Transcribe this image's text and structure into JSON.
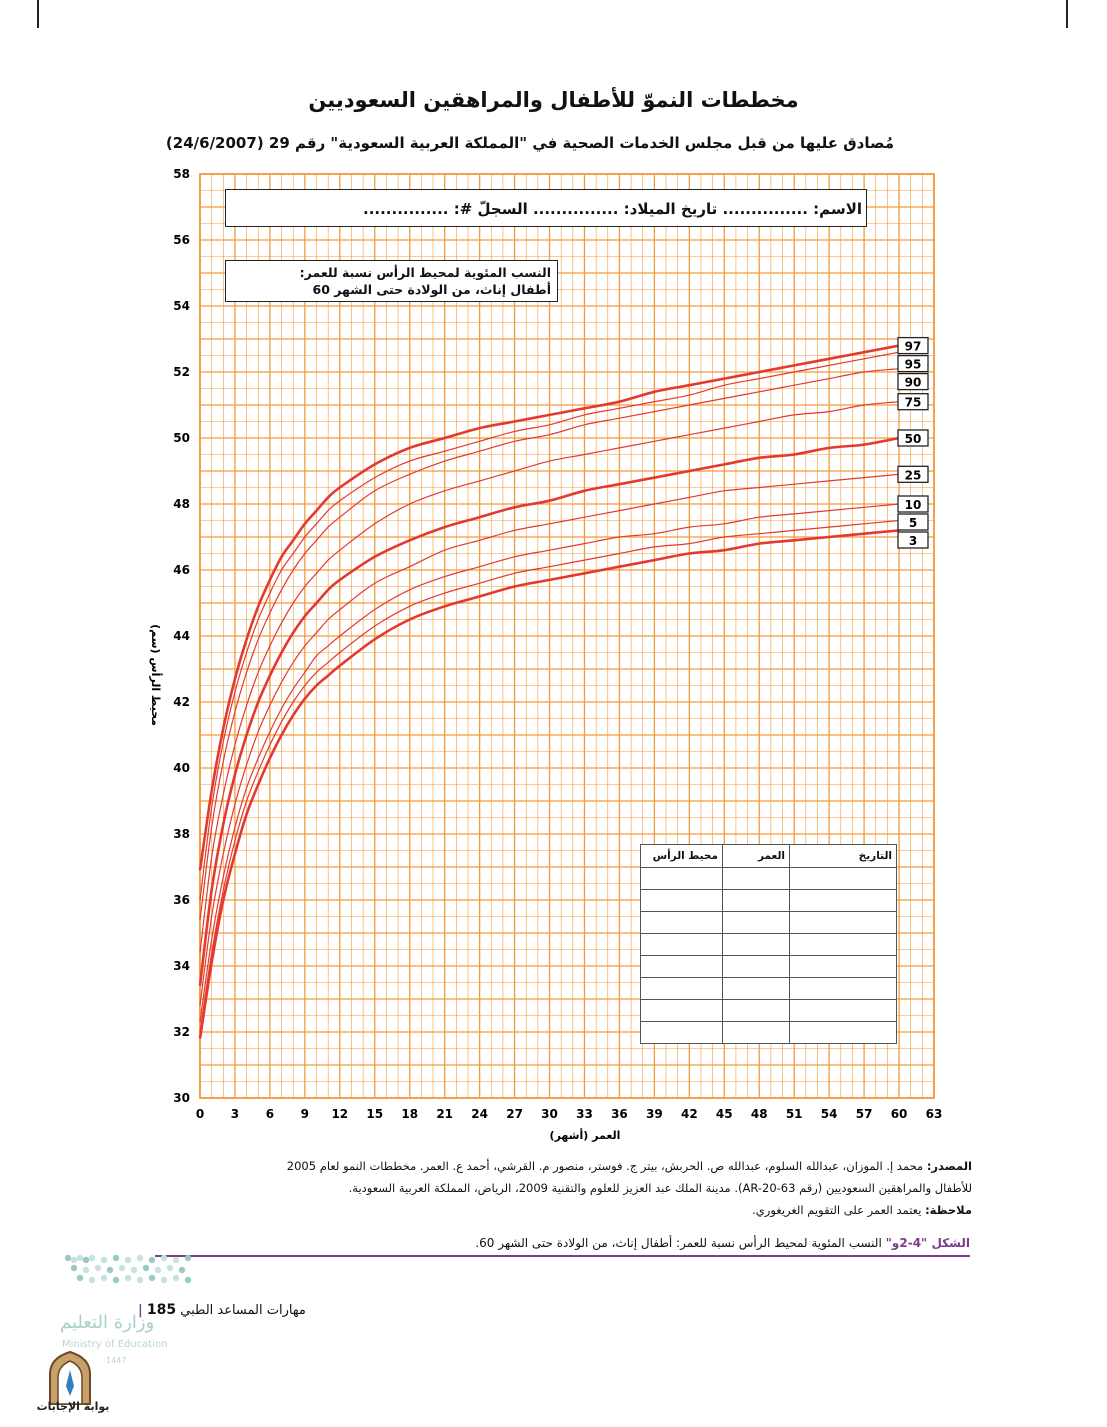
{
  "page": {
    "title": "مخططات النموّ للأطفال والمراهقين السعوديين",
    "subtitle": "مُصادق عليها من قبل مجلس الخدمات الصحية في \"المملكة العربية السعودية\" رقم 29 (24/6/2007)",
    "info_line": "الاسم: ............... تاريخ الميلاد: ............... السجلّ #: ...............",
    "chart_label_line1": "النسب المئوية لمحيط الرأس نسبة للعمر:",
    "chart_label_line2": "أطفال إناث، من الولادة حتى الشهر 60"
  },
  "record_table": {
    "headers": [
      "التاريخ",
      "العمر",
      "محيط الرأس"
    ],
    "empty_rows": 8
  },
  "footer": {
    "source_label": "المصدر:",
    "source_line1": "محمد إ. الموزان، عبدالله السلوم، عبدالله ص. الحربش، بيتر ج. فوستر، منصور م. القرشي، أحمد ع. العمر. مخططات النمو لعام 2005",
    "source_line2": "للأطفال والمراهقين السعوديين (رقم AR-20-63). مدينة الملك عبد العزيز للعلوم والتقنية 2009، الرياض، المملكة العربية السعودية.",
    "note_label": "ملاحظة:",
    "note_text": "يعتمد العمر على التقويم الغريغوري.",
    "figure_label": "الشكل \"4-2و\"",
    "figure_caption": "النسب المئوية لمحيط الرأس نسبة للعمر: أطفال إناث، من الولادة حتى الشهر 60.",
    "page_number": "185",
    "book_title": "مهارات المساعد الطبي"
  },
  "logo": {
    "ministry_ar": "وزارة التعليم",
    "ministry_en": "Ministry of Education",
    "year": "1447",
    "badge_label": "بوابة الإجابات"
  },
  "colors": {
    "grid": "#f39a3c",
    "curve": "#e23a2e",
    "accent": "#7a3e8a"
  },
  "chart_data": {
    "type": "line",
    "xlabel": "العمر (أشهر)",
    "ylabel": "محيط الرأس (سم)",
    "xlim": [
      0,
      63
    ],
    "ylim": [
      30,
      58
    ],
    "x_ticks": [
      0,
      3,
      6,
      9,
      12,
      15,
      18,
      21,
      24,
      27,
      30,
      33,
      36,
      39,
      42,
      45,
      48,
      51,
      54,
      57,
      60,
      63
    ],
    "y_ticks": [
      30,
      32,
      34,
      36,
      38,
      40,
      42,
      44,
      46,
      48,
      50,
      52,
      54,
      56,
      58
    ],
    "grid": true,
    "x": [
      0,
      1,
      2,
      3,
      4,
      5,
      6,
      7,
      8,
      9,
      10,
      11,
      12,
      15,
      18,
      21,
      24,
      27,
      30,
      33,
      36,
      39,
      42,
      45,
      48,
      51,
      54,
      57,
      60
    ],
    "series": [
      {
        "name": "97",
        "emphasis": true,
        "values": [
          36.9,
          39.3,
          41.2,
          42.7,
          43.9,
          44.9,
          45.7,
          46.4,
          46.9,
          47.4,
          47.8,
          48.2,
          48.5,
          49.2,
          49.7,
          50.0,
          50.3,
          50.5,
          50.7,
          50.9,
          51.1,
          51.4,
          51.6,
          51.8,
          52.0,
          52.2,
          52.4,
          52.6,
          52.8
        ]
      },
      {
        "name": "95",
        "emphasis": false,
        "values": [
          36.0,
          38.8,
          40.8,
          42.3,
          43.5,
          44.5,
          45.3,
          46.0,
          46.5,
          47.0,
          47.4,
          47.8,
          48.1,
          48.8,
          49.3,
          49.6,
          49.9,
          50.2,
          50.4,
          50.7,
          50.9,
          51.1,
          51.3,
          51.6,
          51.8,
          52.0,
          52.2,
          52.4,
          52.6
        ]
      },
      {
        "name": "90",
        "emphasis": false,
        "values": [
          35.4,
          38.2,
          40.2,
          41.7,
          42.9,
          43.9,
          44.7,
          45.4,
          46.0,
          46.5,
          46.9,
          47.3,
          47.6,
          48.4,
          48.9,
          49.3,
          49.6,
          49.9,
          50.1,
          50.4,
          50.6,
          50.8,
          51.0,
          51.2,
          51.4,
          51.6,
          51.8,
          52.0,
          52.1
        ]
      },
      {
        "name": "75",
        "emphasis": false,
        "values": [
          34.4,
          37.3,
          39.2,
          40.7,
          41.9,
          42.9,
          43.7,
          44.4,
          45.0,
          45.5,
          45.9,
          46.3,
          46.6,
          47.4,
          48.0,
          48.4,
          48.7,
          49.0,
          49.3,
          49.5,
          49.7,
          49.9,
          50.1,
          50.3,
          50.5,
          50.7,
          50.8,
          51.0,
          51.1
        ]
      },
      {
        "name": "50",
        "emphasis": true,
        "values": [
          33.4,
          36.3,
          38.3,
          39.8,
          41.0,
          42.0,
          42.8,
          43.5,
          44.1,
          44.6,
          45.0,
          45.4,
          45.7,
          46.4,
          46.9,
          47.3,
          47.6,
          47.9,
          48.1,
          48.4,
          48.6,
          48.8,
          49.0,
          49.2,
          49.4,
          49.5,
          49.7,
          49.8,
          50.0
        ]
      },
      {
        "name": "25",
        "emphasis": false,
        "values": [
          32.8,
          35.5,
          37.4,
          38.9,
          40.1,
          41.1,
          41.9,
          42.6,
          43.2,
          43.7,
          44.1,
          44.5,
          44.8,
          45.6,
          46.1,
          46.6,
          46.9,
          47.2,
          47.4,
          47.6,
          47.8,
          48.0,
          48.2,
          48.4,
          48.5,
          48.6,
          48.7,
          48.8,
          48.9
        ]
      },
      {
        "name": "10",
        "emphasis": false,
        "values": [
          32.3,
          34.8,
          36.7,
          38.2,
          39.4,
          40.3,
          41.1,
          41.8,
          42.4,
          42.9,
          43.4,
          43.7,
          44.0,
          44.8,
          45.4,
          45.8,
          46.1,
          46.4,
          46.6,
          46.8,
          47.0,
          47.1,
          47.3,
          47.4,
          47.6,
          47.7,
          47.8,
          47.9,
          48.0
        ]
      },
      {
        "name": "5",
        "emphasis": false,
        "values": [
          32.0,
          34.4,
          36.3,
          37.8,
          39.0,
          39.9,
          40.7,
          41.4,
          42.0,
          42.5,
          42.9,
          43.2,
          43.5,
          44.3,
          44.9,
          45.3,
          45.6,
          45.9,
          46.1,
          46.3,
          46.5,
          46.7,
          46.8,
          47.0,
          47.1,
          47.2,
          47.3,
          47.4,
          47.5
        ]
      },
      {
        "name": "3",
        "emphasis": true,
        "values": [
          31.8,
          34.1,
          36.0,
          37.4,
          38.6,
          39.5,
          40.3,
          41.0,
          41.6,
          42.1,
          42.5,
          42.8,
          43.1,
          43.9,
          44.5,
          44.9,
          45.2,
          45.5,
          45.7,
          45.9,
          46.1,
          46.3,
          46.5,
          46.6,
          46.8,
          46.9,
          47.0,
          47.1,
          47.2
        ]
      }
    ]
  }
}
